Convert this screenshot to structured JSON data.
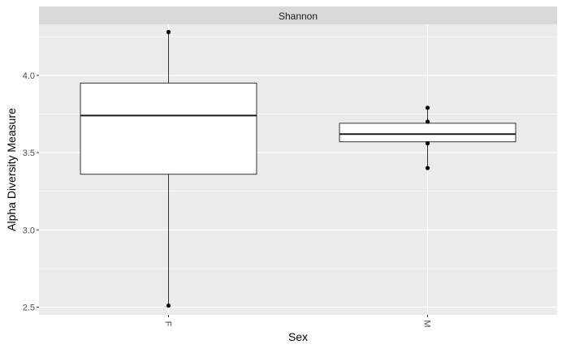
{
  "chart_data": {
    "type": "box",
    "facet_label": "Shannon",
    "xlabel": "Sex",
    "ylabel": "Alpha Diversity Measure",
    "categories": [
      "F",
      "M"
    ],
    "ylim": [
      2.45,
      4.33
    ],
    "yticks": [
      2.5,
      3.0,
      3.5,
      4.0
    ],
    "ytick_labels": [
      "2.5",
      "3.0",
      "3.5",
      "4.0"
    ],
    "grid": true,
    "boxes": [
      {
        "category": "F",
        "min": 2.51,
        "q1": 3.36,
        "median": 3.74,
        "q3": 3.95,
        "max": 4.28
      },
      {
        "category": "M",
        "min": 3.4,
        "q1": 3.57,
        "median": 3.62,
        "q3": 3.69,
        "max": 3.79
      }
    ],
    "points": [
      {
        "category": "F",
        "values": [
          4.28,
          2.51
        ]
      },
      {
        "category": "M",
        "values": [
          3.79,
          3.7,
          3.56,
          3.4
        ]
      }
    ]
  }
}
